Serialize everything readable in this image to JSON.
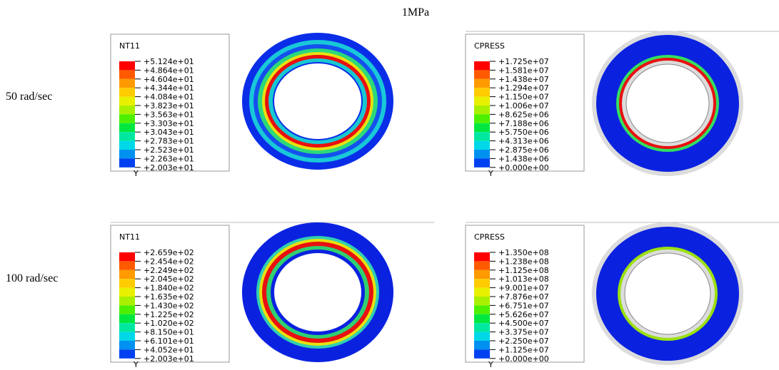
{
  "title": "1MPa",
  "rows": [
    "50 rad/sec",
    "100 rad/sec"
  ],
  "panels": [
    {
      "legend_title": "NT11",
      "axis": "Y",
      "labels": [
        "+5.124e+01",
        "+4.864e+01",
        "+4.604e+01",
        "+4.344e+01",
        "+4.084e+01",
        "+3.823e+01",
        "+3.563e+01",
        "+3.303e+01",
        "+3.043e+01",
        "+2.783e+01",
        "+2.523e+01",
        "+2.263e+01",
        "+2.003e+01"
      ]
    },
    {
      "legend_title": "CPRESS",
      "axis": "Y",
      "labels": [
        "+1.725e+07",
        "+1.581e+07",
        "+1.438e+07",
        "+1.294e+07",
        "+1.150e+07",
        "+1.006e+07",
        "+8.625e+06",
        "+7.188e+06",
        "+5.750e+06",
        "+4.313e+06",
        "+2.875e+06",
        "+1.438e+06",
        "+0.000e+00"
      ]
    },
    {
      "legend_title": "NT11",
      "axis": "Y",
      "labels": [
        "+2.659e+02",
        "+2.454e+02",
        "+2.249e+02",
        "+2.045e+02",
        "+1.840e+02",
        "+1.635e+02",
        "+1.430e+02",
        "+1.225e+02",
        "+1.020e+02",
        "+8.150e+01",
        "+6.101e+01",
        "+4.052e+01",
        "+2.003e+01"
      ]
    },
    {
      "legend_title": "CPRESS",
      "axis": "Y",
      "labels": [
        "+1.350e+08",
        "+1.238e+08",
        "+1.125e+08",
        "+1.013e+08",
        "+9.001e+07",
        "+7.876e+07",
        "+6.751e+07",
        "+5.626e+07",
        "+4.500e+07",
        "+3.375e+07",
        "+2.250e+07",
        "+1.125e+07",
        "+0.000e+00"
      ]
    }
  ]
}
